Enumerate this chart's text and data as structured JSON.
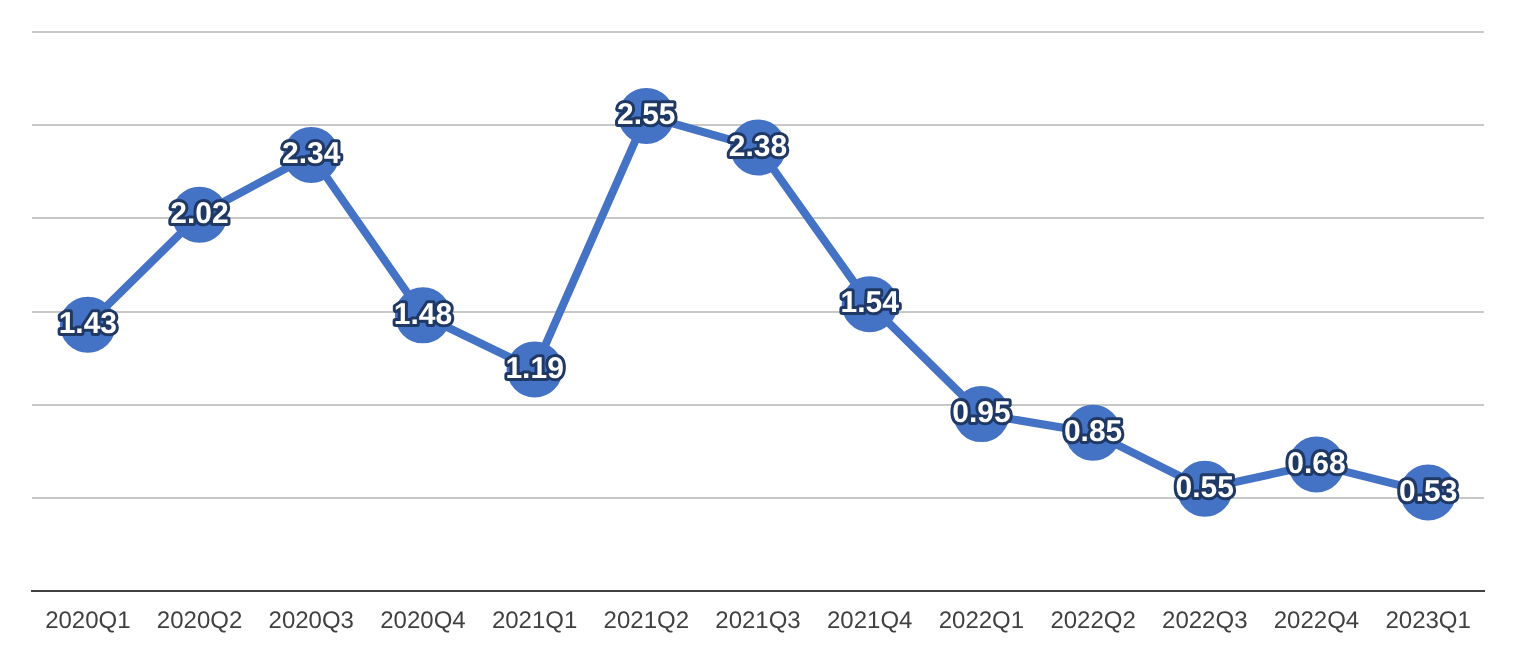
{
  "chart_data": {
    "type": "line",
    "categories": [
      "2020Q1",
      "2020Q2",
      "2020Q3",
      "2020Q4",
      "2021Q1",
      "2021Q2",
      "2021Q3",
      "2021Q4",
      "2022Q1",
      "2022Q2",
      "2022Q3",
      "2022Q4",
      "2023Q1"
    ],
    "series": [
      {
        "color": "#4472c4",
        "values": [
          1.43,
          2.02,
          2.34,
          1.48,
          1.19,
          2.55,
          2.38,
          1.54,
          0.95,
          0.85,
          0.55,
          0.68,
          0.53
        ]
      }
    ],
    "ylim": [
      0,
      3
    ],
    "yticks": [
      {
        "value": 0,
        "label": null
      },
      {
        "value": 0.5,
        "label": null
      },
      {
        "value": 1,
        "label": null
      },
      {
        "value": 1.5,
        "label": null
      },
      {
        "value": 2,
        "label": null
      },
      {
        "value": 2.5,
        "label": null
      },
      {
        "value": 3,
        "label": null
      }
    ],
    "tick_labels": "x",
    "grid": "y",
    "marker": "circle",
    "line_style": "solid",
    "data_labels": true,
    "legend": false
  }
}
